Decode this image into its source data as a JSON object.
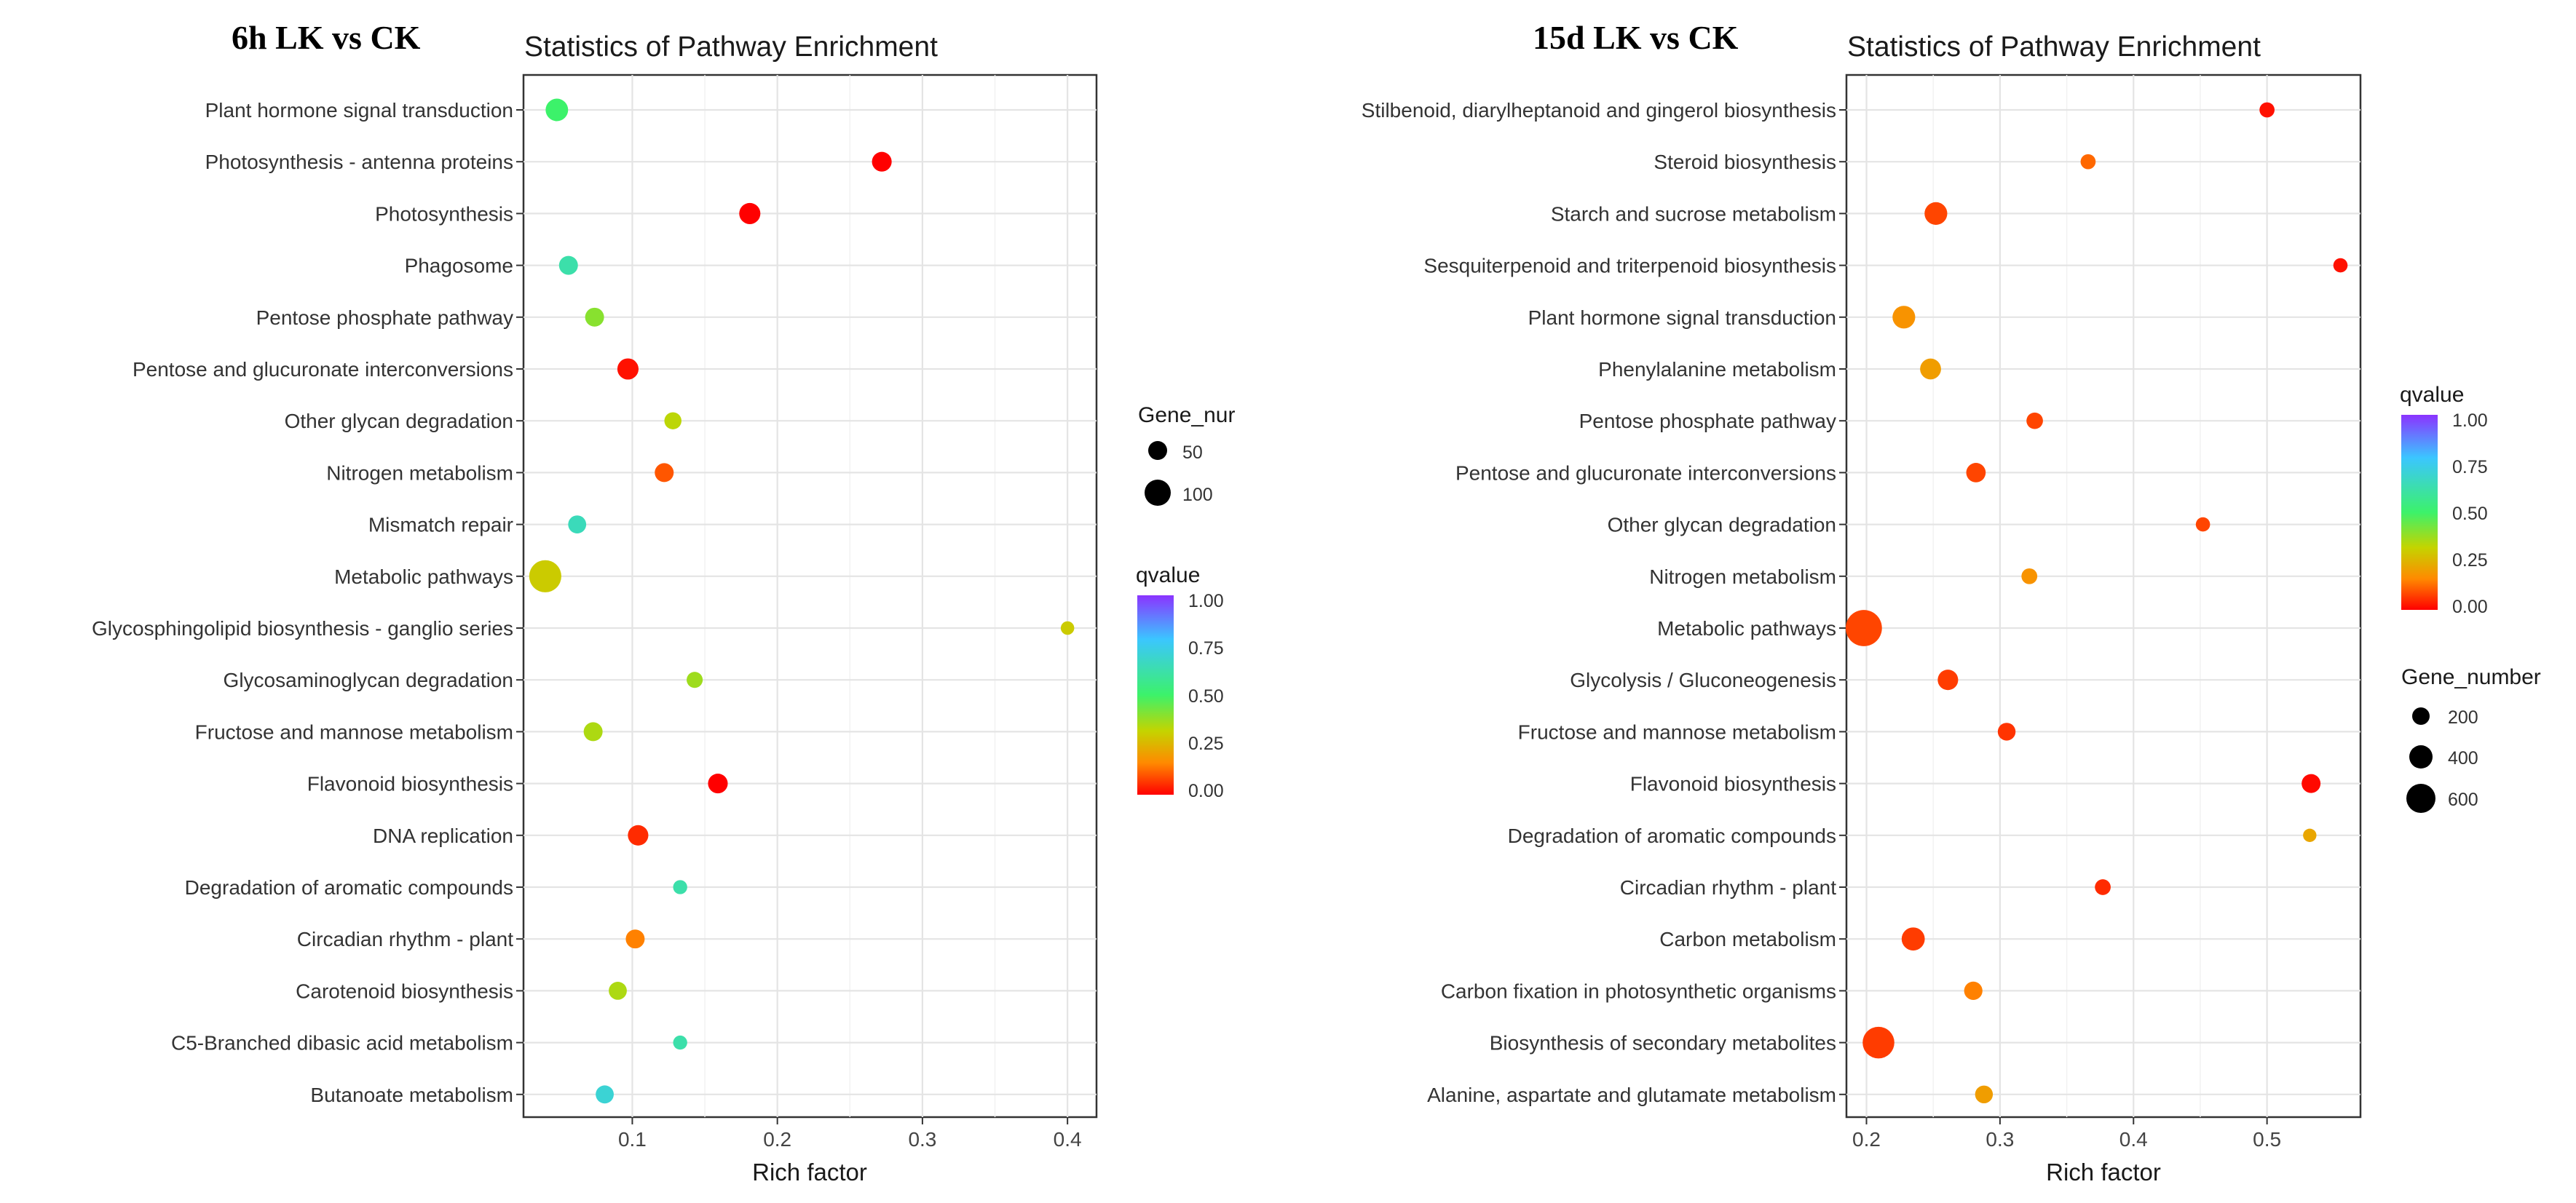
{
  "chart_data": [
    {
      "type": "scatter",
      "panel_label": "6h LK vs CK",
      "title": "Statistics of Pathway Enrichment",
      "xlabel": "Rich factor",
      "ylabel": "",
      "xlim": [
        0.025,
        0.42
      ],
      "xticks": [
        0.1,
        0.2,
        0.3,
        0.4
      ],
      "xtick_labels": [
        "0.1",
        "0.2",
        "0.3",
        "0.4"
      ],
      "grid": true,
      "categories": [
        "Plant hormone signal transduction",
        "Photosynthesis - antenna proteins",
        "Photosynthesis",
        "Phagosome",
        "Pentose phosphate pathway",
        "Pentose and glucuronate interconversions",
        "Other glycan degradation",
        "Nitrogen metabolism",
        "Mismatch repair",
        "Metabolic pathways",
        "Glycosphingolipid biosynthesis - ganglio series",
        "Glycosaminoglycan degradation",
        "Fructose and mannose metabolism",
        "Flavonoid biosynthesis",
        "DNA replication",
        "Degradation of aromatic compounds",
        "Circadian rhythm - plant",
        "Carotenoid biosynthesis",
        "C5-Branched dibasic acid metabolism",
        "Butanoate metabolism"
      ],
      "rich_factor": [
        0.048,
        0.272,
        0.181,
        0.056,
        0.074,
        0.097,
        0.128,
        0.122,
        0.062,
        0.04,
        0.4,
        0.143,
        0.073,
        0.159,
        0.104,
        0.133,
        0.102,
        0.09,
        0.133,
        0.081
      ],
      "qvalue": [
        0.5,
        0.0,
        0.0,
        0.62,
        0.4,
        0.02,
        0.33,
        0.1,
        0.65,
        0.3,
        0.3,
        0.37,
        0.35,
        0.0,
        0.05,
        0.62,
        0.15,
        0.35,
        0.62,
        0.7
      ],
      "gene_number": [
        60,
        40,
        50,
        35,
        35,
        50,
        25,
        35,
        30,
        160,
        10,
        20,
        35,
        40,
        45,
        12,
        35,
        30,
        12,
        30
      ],
      "legend_size": {
        "title": "Gene_nur",
        "entries": [
          50,
          100
        ],
        "labels": [
          "50",
          "100"
        ],
        "position": "right-upper"
      },
      "legend_color": {
        "title": "qvalue",
        "range": [
          0.0,
          1.0
        ],
        "ticks": [
          "1.00",
          "0.75",
          "0.50",
          "0.25",
          "0.00"
        ],
        "position": "right-middle"
      }
    },
    {
      "type": "scatter",
      "panel_label": "15d LK vs CK",
      "title": "Statistics of Pathway Enrichment",
      "xlabel": "Rich factor",
      "ylabel": "",
      "xlim": [
        0.185,
        0.57
      ],
      "xticks": [
        0.2,
        0.3,
        0.4,
        0.5
      ],
      "xtick_labels": [
        "0.2",
        "0.3",
        "0.4",
        "0.5"
      ],
      "grid": true,
      "categories": [
        "Stilbenoid, diarylheptanoid and gingerol biosynthesis",
        "Steroid biosynthesis",
        "Starch and sucrose metabolism",
        "Sesquiterpenoid and triterpenoid biosynthesis",
        "Plant hormone signal transduction",
        "Phenylalanine metabolism",
        "Pentose phosphate pathway",
        "Pentose and glucuronate interconversions",
        "Other glycan degradation",
        "Nitrogen metabolism",
        "Metabolic pathways",
        "Glycolysis / Gluconeogenesis",
        "Fructose and mannose metabolism",
        "Flavonoid biosynthesis",
        "Degradation of aromatic compounds",
        "Circadian rhythm - plant",
        "Carbon metabolism",
        "Carbon fixation in photosynthetic organisms",
        "Biosynthesis of secondary metabolites",
        "Alanine, aspartate and glutamate metabolism"
      ],
      "rich_factor": [
        0.5,
        0.366,
        0.252,
        0.555,
        0.228,
        0.248,
        0.326,
        0.282,
        0.452,
        0.322,
        0.198,
        0.261,
        0.305,
        0.533,
        0.532,
        0.377,
        0.235,
        0.28,
        0.209,
        0.288
      ],
      "qvalue": [
        0.02,
        0.12,
        0.08,
        0.02,
        0.18,
        0.2,
        0.08,
        0.08,
        0.08,
        0.18,
        0.08,
        0.07,
        0.06,
        0.01,
        0.22,
        0.05,
        0.07,
        0.15,
        0.07,
        0.2
      ],
      "gene_number": [
        60,
        60,
        200,
        50,
        200,
        160,
        80,
        130,
        50,
        70,
        650,
        150,
        100,
        120,
        40,
        70,
        210,
        110,
        470,
        100
      ],
      "legend_size": {
        "title": "Gene_number",
        "entries": [
          200,
          400,
          600
        ],
        "labels": [
          "200",
          "400",
          "600"
        ],
        "position": "right-lower"
      },
      "legend_color": {
        "title": "qvalue",
        "range": [
          0.0,
          1.0
        ],
        "ticks": [
          "1.00",
          "0.75",
          "0.50",
          "0.25",
          "0.00"
        ],
        "position": "right-upper"
      }
    }
  ]
}
